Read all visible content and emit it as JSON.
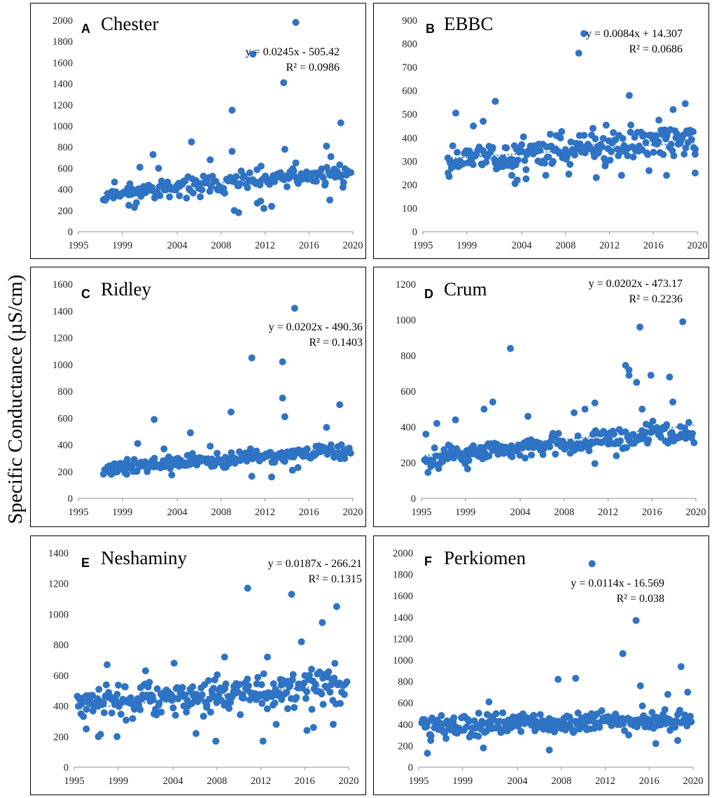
{
  "y_axis_label": "Specific Conductance (µS/cm)",
  "colors": {
    "marker": "#2f73c4",
    "trendline": "#2f73c4",
    "axis": "#8c8c8c",
    "frame": "#000000"
  },
  "chart_data": [
    {
      "id": "A",
      "title": "Chester",
      "type": "scatter",
      "equation": "y = 0.0245x - 505.42",
      "r2": "R² = 0.0986",
      "xticks": [
        "1995",
        "1999",
        "2004",
        "2008",
        "2012",
        "2016",
        "2020"
      ],
      "yticks": [
        "0",
        "200",
        "400",
        "600",
        "800",
        "1000",
        "1200",
        "1400",
        "1600",
        "1800",
        "2000"
      ],
      "ylim": [
        0,
        2000
      ],
      "xlim": [
        1995,
        2020
      ],
      "trend": [
        1997.3,
        366,
        2019.8,
        570
      ],
      "seed": 11,
      "generated_points": {
        "start": 1997.3,
        "end": 2019.8,
        "n": 180,
        "baseStart": 360,
        "baseEnd": 560,
        "amp": 90
      },
      "points": [
        [
          1997.4,
          310
        ],
        [
          1999.6,
          250
        ],
        [
          2000.1,
          230
        ],
        [
          2000.6,
          610
        ],
        [
          2001.8,
          730
        ],
        [
          2002.3,
          600
        ],
        [
          2003.3,
          330
        ],
        [
          2004.2,
          340
        ],
        [
          2005.3,
          850
        ],
        [
          2006.1,
          330
        ],
        [
          2007.0,
          680
        ],
        [
          2009.0,
          1150
        ],
        [
          2009.0,
          760
        ],
        [
          2009.2,
          200
        ],
        [
          2009.6,
          180
        ],
        [
          2010.9,
          1680
        ],
        [
          2011.3,
          270
        ],
        [
          2011.6,
          290
        ],
        [
          2011.9,
          220
        ],
        [
          2012.6,
          240
        ],
        [
          2013.7,
          1410
        ],
        [
          2013.8,
          780
        ],
        [
          2014.8,
          1980
        ],
        [
          2014.8,
          650
        ],
        [
          2017.6,
          810
        ],
        [
          2017.9,
          300
        ],
        [
          2018.0,
          710
        ],
        [
          2018.9,
          1030
        ],
        [
          2019.1,
          420
        ]
      ]
    },
    {
      "id": "B",
      "title": "EBBC",
      "type": "scatter",
      "equation": "y = 0.0084x + 14.307",
      "r2": "R² = 0.0686",
      "xticks": [
        "1995",
        "1999",
        "2004",
        "2008",
        "2012",
        "2016",
        "2020"
      ],
      "yticks": [
        "0",
        "100",
        "200",
        "300",
        "400",
        "500",
        "600",
        "700",
        "800",
        "900"
      ],
      "ylim": [
        0,
        900
      ],
      "xlim": [
        1995,
        2020
      ],
      "trend": [
        1997.3,
        312,
        2019.8,
        380
      ],
      "seed": 23,
      "generated_points": {
        "start": 1997.3,
        "end": 2019.8,
        "n": 210,
        "baseStart": 310,
        "baseEnd": 390,
        "amp": 70
      },
      "points": [
        [
          1997.3,
          250
        ],
        [
          1997.4,
          235
        ],
        [
          1998.0,
          505
        ],
        [
          1999.6,
          450
        ],
        [
          2000.5,
          470
        ],
        [
          2001.6,
          555
        ],
        [
          2002.5,
          300
        ],
        [
          2003.1,
          240
        ],
        [
          2003.4,
          205
        ],
        [
          2003.6,
          220
        ],
        [
          2004.4,
          225
        ],
        [
          2006.2,
          240
        ],
        [
          2006.6,
          415
        ],
        [
          2008.3,
          245
        ],
        [
          2009.2,
          760
        ],
        [
          2010.5,
          440
        ],
        [
          2010.8,
          230
        ],
        [
          2011.6,
          280
        ],
        [
          2013.1,
          240
        ],
        [
          2013.8,
          580
        ],
        [
          2015.6,
          260
        ],
        [
          2016.5,
          475
        ],
        [
          2017.2,
          240
        ],
        [
          2017.8,
          520
        ],
        [
          2018.9,
          545
        ],
        [
          2019.8,
          250
        ],
        [
          2019.8,
          330
        ]
      ]
    },
    {
      "id": "C",
      "title": "Ridley",
      "type": "scatter",
      "equation": "y = 0.0202x - 490.36",
      "r2": "R² = 0.1403",
      "xticks": [
        "1995",
        "1999",
        "2004",
        "2008",
        "2012",
        "2016",
        "2020"
      ],
      "yticks": [
        "0",
        "200",
        "400",
        "600",
        "800",
        "1000",
        "1200",
        "1400",
        "1600"
      ],
      "ylim": [
        0,
        1600
      ],
      "xlim": [
        1995,
        2020
      ],
      "trend": [
        1997.3,
        228,
        2019.8,
        390
      ],
      "seed": 37,
      "generated_points": {
        "start": 1997.3,
        "end": 2019.8,
        "n": 210,
        "baseStart": 225,
        "baseEnd": 360,
        "amp": 50
      },
      "points": [
        [
          1998.0,
          180
        ],
        [
          1999.4,
          180
        ],
        [
          2000.4,
          410
        ],
        [
          2001.9,
          590
        ],
        [
          2002.8,
          370
        ],
        [
          2003.5,
          175
        ],
        [
          2005.2,
          490
        ],
        [
          2007.0,
          390
        ],
        [
          2008.9,
          645
        ],
        [
          2009.9,
          320
        ],
        [
          2010.8,
          1050
        ],
        [
          2010.8,
          165
        ],
        [
          2012.6,
          160
        ],
        [
          2013.6,
          1020
        ],
        [
          2013.6,
          750
        ],
        [
          2013.8,
          610
        ],
        [
          2014.7,
          1420
        ],
        [
          2014.5,
          210
        ],
        [
          2015.0,
          230
        ],
        [
          2017.6,
          530
        ],
        [
          2018.8,
          700
        ]
      ]
    },
    {
      "id": "D",
      "title": "Crum",
      "type": "scatter",
      "equation": "y = 0.0202x - 473.17",
      "r2": "R² = 0.2236",
      "xticks": [
        "1995",
        "1999",
        "2004",
        "2008",
        "2012",
        "2016",
        "2020"
      ],
      "yticks": [
        "0",
        "200",
        "400",
        "600",
        "800",
        "1000",
        "1200"
      ],
      "ylim": [
        0,
        1200
      ],
      "xlim": [
        1995,
        2020
      ],
      "trend": [
        1995.3,
        240,
        2019.8,
        410
      ],
      "seed": 49,
      "generated_points": {
        "start": 1995.3,
        "end": 2019.8,
        "n": 240,
        "baseStart": 225,
        "baseEnd": 370,
        "amp": 60
      },
      "points": [
        [
          1995.4,
          360
        ],
        [
          1996.4,
          420
        ],
        [
          1998.1,
          440
        ],
        [
          1999.2,
          165
        ],
        [
          2000.7,
          500
        ],
        [
          2001.5,
          540
        ],
        [
          2003.1,
          840
        ],
        [
          2004.7,
          460
        ],
        [
          2008.9,
          480
        ],
        [
          2009.9,
          500
        ],
        [
          2010.8,
          535
        ],
        [
          2010.8,
          195
        ],
        [
          2013.6,
          745
        ],
        [
          2013.9,
          720
        ],
        [
          2013.9,
          690
        ],
        [
          2014.9,
          960
        ],
        [
          2014.6,
          650
        ],
        [
          2015.1,
          500
        ],
        [
          2015.9,
          690
        ],
        [
          2017.6,
          680
        ],
        [
          2017.9,
          540
        ],
        [
          2018.8,
          990
        ]
      ]
    },
    {
      "id": "E",
      "title": "Neshaminy",
      "type": "scatter",
      "equation": "y = 0.0187x - 266.21",
      "r2": "R² = 0.1315",
      "xticks": [
        "1995",
        "1999",
        "2004",
        "2008",
        "2012",
        "2016",
        "2020"
      ],
      "yticks": [
        "0",
        "200",
        "400",
        "600",
        "800",
        "1000",
        "1200",
        "1400"
      ],
      "ylim": [
        0,
        1400
      ],
      "xlim": [
        1995,
        2020
      ],
      "trend": [
        1995.3,
        380,
        2019.8,
        545
      ],
      "seed": 61,
      "generated_points": {
        "start": 1995.3,
        "end": 2019.8,
        "n": 260,
        "baseStart": 400,
        "baseEnd": 540,
        "amp": 115
      },
      "points": [
        [
          1996.1,
          250
        ],
        [
          1997.2,
          200
        ],
        [
          1997.4,
          215
        ],
        [
          1998.0,
          670
        ],
        [
          1998.9,
          200
        ],
        [
          2001.5,
          630
        ],
        [
          2004.1,
          680
        ],
        [
          2006.1,
          220
        ],
        [
          2007.9,
          170
        ],
        [
          2008.7,
          720
        ],
        [
          2010.8,
          1170
        ],
        [
          2012.2,
          170
        ],
        [
          2012.6,
          720
        ],
        [
          2013.4,
          280
        ],
        [
          2014.8,
          1130
        ],
        [
          2015.7,
          820
        ],
        [
          2016.2,
          240
        ],
        [
          2016.8,
          260
        ],
        [
          2017.6,
          945
        ],
        [
          2018.6,
          280
        ],
        [
          2018.9,
          1050
        ]
      ]
    },
    {
      "id": "F",
      "title": "Perkiomen",
      "type": "scatter",
      "equation": "y = 0.0114x - 16.569",
      "r2": "R² = 0.038",
      "xticks": [
        "1995",
        "1999",
        "2004",
        "2008",
        "2012",
        "2016",
        "2020"
      ],
      "yticks": [
        "0",
        "200",
        "400",
        "600",
        "800",
        "1000",
        "1200",
        "1400",
        "1600",
        "1800",
        "2000"
      ],
      "ylim": [
        0,
        2000
      ],
      "xlim": [
        1995,
        2020
      ],
      "trend": [
        1995.3,
        366,
        2019.8,
        460
      ],
      "seed": 73,
      "generated_points": {
        "start": 1995.3,
        "end": 2019.8,
        "n": 260,
        "baseStart": 380,
        "baseEnd": 450,
        "amp": 110
      },
      "points": [
        [
          1995.8,
          130
        ],
        [
          1996.1,
          250
        ],
        [
          2000.9,
          180
        ],
        [
          2001.4,
          610
        ],
        [
          2006.9,
          160
        ],
        [
          2007.7,
          820
        ],
        [
          2009.3,
          830
        ],
        [
          2010.8,
          1900
        ],
        [
          2013.6,
          1060
        ],
        [
          2014.8,
          1370
        ],
        [
          2015.2,
          760
        ],
        [
          2016.6,
          220
        ],
        [
          2017.7,
          680
        ],
        [
          2018.6,
          250
        ],
        [
          2018.9,
          940
        ],
        [
          2019.5,
          700
        ]
      ]
    }
  ]
}
